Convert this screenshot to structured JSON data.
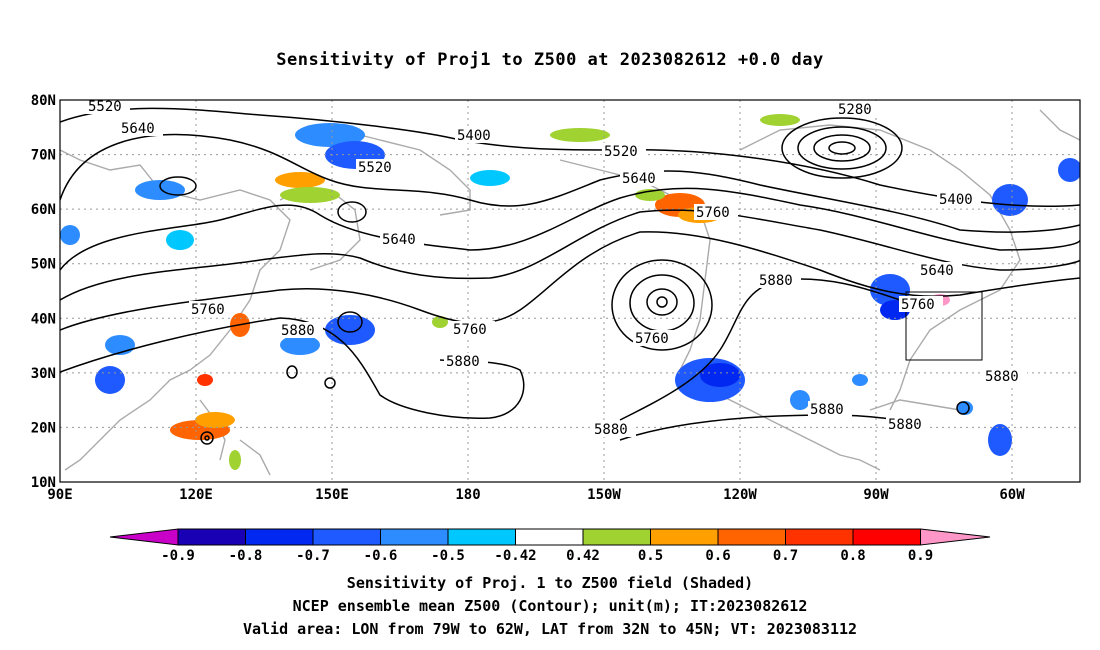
{
  "title": "Sensitivity of Proj1 to Z500 at 2023082612 +0.0 day",
  "lat_labels": [
    "80N",
    "70N",
    "60N",
    "50N",
    "40N",
    "30N",
    "20N",
    "10N"
  ],
  "lon_labels": [
    "90E",
    "120E",
    "150E",
    "180",
    "150W",
    "120W",
    "90W",
    "60W"
  ],
  "contour_labels": [
    "5520",
    "5640",
    "5400",
    "5520",
    "5520",
    "5280",
    "5640",
    "5760",
    "5640",
    "5400",
    "5640",
    "5760",
    "5880",
    "5760",
    "5760",
    "5880",
    "5760",
    "5880",
    "5880",
    "5880",
    "5880",
    "5880"
  ],
  "colorbar": {
    "labels": [
      "-0.9",
      "-0.8",
      "-0.7",
      "-0.6",
      "-0.5",
      "-0.42",
      "0.42",
      "0.5",
      "0.6",
      "0.7",
      "0.8",
      "0.9"
    ],
    "colors": [
      "#c800c8",
      "#1a00b4",
      "#0028f0",
      "#1e5aff",
      "#2d8cff",
      "#00c8ff",
      "#ffffff",
      "#a0d232",
      "#ffa000",
      "#ff6400",
      "#ff3200",
      "#ff0000",
      "#ff96c8"
    ]
  },
  "footer": {
    "line1": "Sensitivity of Proj. 1 to Z500 field (Shaded)",
    "line2": "NCEP ensemble mean Z500 (Contour); unit(m); IT:2023082612",
    "line3": "Valid area: LON from 79W to 62W, LAT from 32N to 45N; VT: 2023083112"
  }
}
